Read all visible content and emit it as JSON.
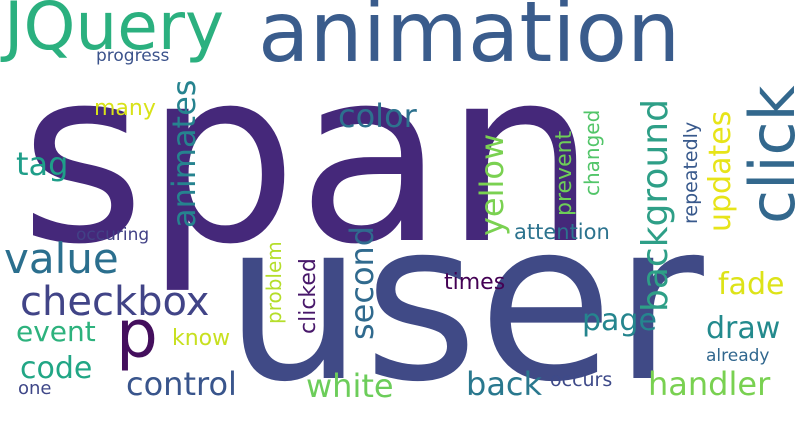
{
  "words": [
    {
      "text": "span",
      "color": "#45287a"
    },
    {
      "text": "user",
      "color": "#404a86"
    },
    {
      "text": "animation",
      "color": "#3a5c8c"
    },
    {
      "text": "JQuery",
      "color": "#2bb07f"
    },
    {
      "text": "click",
      "color": "#33688d"
    },
    {
      "text": "checkbox",
      "color": "#414487"
    },
    {
      "text": "value",
      "color": "#2b6f8e"
    },
    {
      "text": "p",
      "color": "#440f5d"
    },
    {
      "text": "background",
      "color": "#2e9f87"
    },
    {
      "text": "animates",
      "color": "#26838f"
    },
    {
      "text": "yellow",
      "color": "#7ad151"
    },
    {
      "text": "updates",
      "color": "#e7e419"
    },
    {
      "text": "color",
      "color": "#2d718e"
    },
    {
      "text": "tag",
      "color": "#1f9e89"
    },
    {
      "text": "second",
      "color": "#306a8e"
    },
    {
      "text": "control",
      "color": "#39558c"
    },
    {
      "text": "white",
      "color": "#6ccd5a"
    },
    {
      "text": "back",
      "color": "#2a788e"
    },
    {
      "text": "handler",
      "color": "#79d151"
    },
    {
      "text": "draw",
      "color": "#238a8d"
    },
    {
      "text": "page",
      "color": "#25858e"
    },
    {
      "text": "event",
      "color": "#2db27d"
    },
    {
      "text": "code",
      "color": "#21a685"
    },
    {
      "text": "fade",
      "color": "#dde318"
    },
    {
      "text": "repeatedly",
      "color": "#38598c"
    },
    {
      "text": "prevent",
      "color": "#6ece58"
    },
    {
      "text": "changed",
      "color": "#52c569"
    },
    {
      "text": "attention",
      "color": "#2c738e"
    },
    {
      "text": "problem",
      "color": "#b5de2b"
    },
    {
      "text": "clicked",
      "color": "#48186a"
    },
    {
      "text": "times",
      "color": "#440154"
    },
    {
      "text": "many",
      "color": "#d8e219"
    },
    {
      "text": "know",
      "color": "#c8e020"
    },
    {
      "text": "occuring",
      "color": "#424186"
    },
    {
      "text": "progress",
      "color": "#3b528b"
    },
    {
      "text": "occurs",
      "color": "#3e4a89"
    },
    {
      "text": "already",
      "color": "#31678e"
    },
    {
      "text": "one",
      "color": "#3f4788"
    }
  ]
}
